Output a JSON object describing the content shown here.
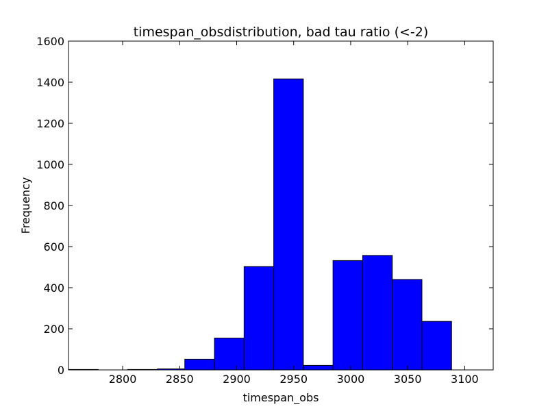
{
  "chart_data": {
    "type": "bar",
    "title": "timespan_obsdistribution, bad tau ratio (<-2)",
    "xlabel": "timespan_obs",
    "ylabel": "Frequency",
    "xlim": [
      2752.5,
      3125
    ],
    "ylim": [
      0,
      1600
    ],
    "xticks": [
      2800,
      2850,
      2900,
      2950,
      3000,
      3050,
      3100
    ],
    "yticks": [
      0,
      200,
      400,
      600,
      800,
      1000,
      1200,
      1400,
      1600
    ],
    "bar_color": "#0000ff",
    "bins": [
      {
        "x0": 2752.5,
        "x1": 2778.5,
        "value": 2
      },
      {
        "x0": 2778.5,
        "x1": 2804.5,
        "value": 0
      },
      {
        "x0": 2804.5,
        "x1": 2830.5,
        "value": 2
      },
      {
        "x0": 2830.5,
        "x1": 2854.5,
        "value": 5
      },
      {
        "x0": 2854.5,
        "x1": 2880.5,
        "value": 52
      },
      {
        "x0": 2880.5,
        "x1": 2906.5,
        "value": 155
      },
      {
        "x0": 2906.5,
        "x1": 2932.5,
        "value": 503
      },
      {
        "x0": 2932.5,
        "x1": 2958.5,
        "value": 1416
      },
      {
        "x0": 2958.5,
        "x1": 2984.5,
        "value": 22
      },
      {
        "x0": 2984.5,
        "x1": 3010.5,
        "value": 532
      },
      {
        "x0": 3010.5,
        "x1": 3036.5,
        "value": 557
      },
      {
        "x0": 3036.5,
        "x1": 3062.5,
        "value": 440
      },
      {
        "x0": 3062.5,
        "x1": 3088.5,
        "value": 236
      }
    ]
  }
}
